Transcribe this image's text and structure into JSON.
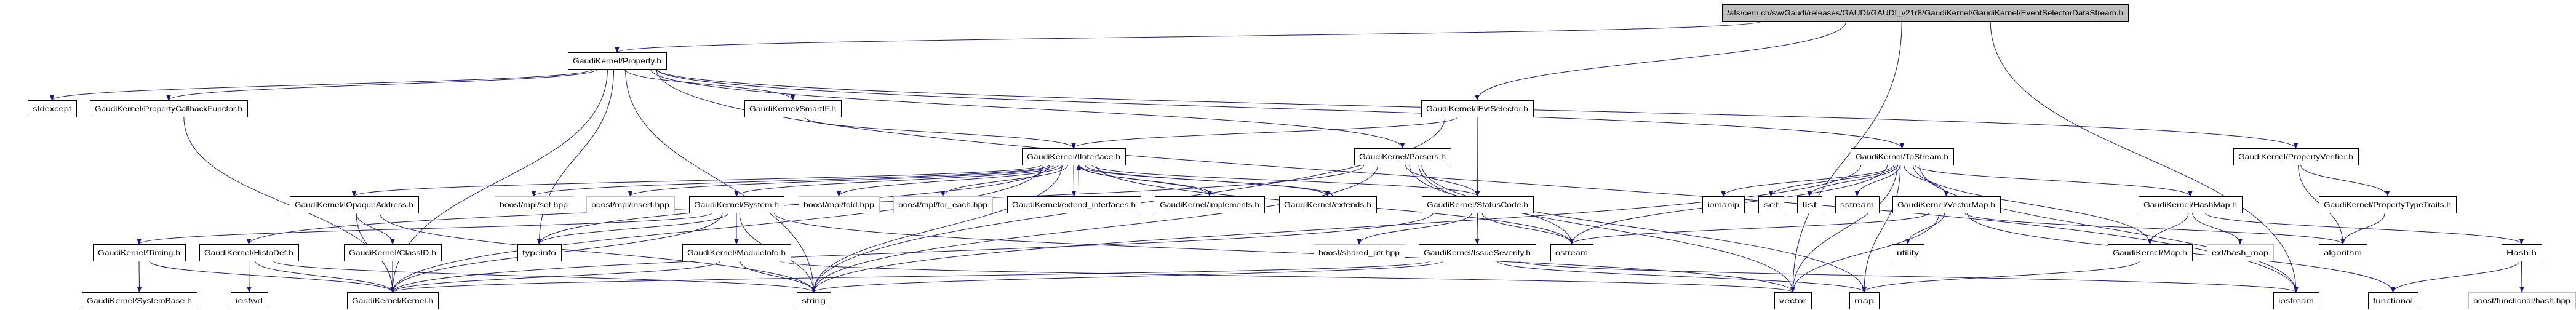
{
  "graph": {
    "edge_color": "#191970",
    "external_border_color": "#bfbfbf",
    "root_fill_color": "#bfbfbf",
    "nodes": [
      {
        "id": "root",
        "label": "/afs/cern.ch/sw/Gaudi/releases/GAUDI/GAUDI_v21r8/GaudiKernel/GaudiKernel/EventSelectorDataStream.h",
        "root": true
      },
      {
        "id": "property",
        "label": "GaudiKernel/Property.h"
      },
      {
        "id": "stdexcept",
        "label": "stdexcept"
      },
      {
        "id": "propcb",
        "label": "GaudiKernel/PropertyCallbackFunctor.h"
      },
      {
        "id": "smartif",
        "label": "GaudiKernel/SmartIF.h"
      },
      {
        "id": "ievtsel",
        "label": "GaudiKernel/IEvtSelector.h"
      },
      {
        "id": "iinterface",
        "label": "GaudiKernel/IInterface.h"
      },
      {
        "id": "parsers",
        "label": "GaudiKernel/Parsers.h"
      },
      {
        "id": "tostream",
        "label": "GaudiKernel/ToStream.h"
      },
      {
        "id": "propverifier",
        "label": "GaudiKernel/PropertyVerifier.h"
      },
      {
        "id": "iopaque",
        "label": "GaudiKernel/IOpaqueAddress.h"
      },
      {
        "id": "mplset",
        "label": "boost/mpl/set.hpp",
        "external": true
      },
      {
        "id": "mplinsert",
        "label": "boost/mpl/insert.hpp",
        "external": true
      },
      {
        "id": "system",
        "label": "GaudiKernel/System.h"
      },
      {
        "id": "mplfold",
        "label": "boost/mpl/fold.hpp",
        "external": true
      },
      {
        "id": "mplforeach",
        "label": "boost/mpl/for_each.hpp",
        "external": true
      },
      {
        "id": "extendif",
        "label": "GaudiKernel/extend_interfaces.h"
      },
      {
        "id": "implements",
        "label": "GaudiKernel/implements.h"
      },
      {
        "id": "extends",
        "label": "GaudiKernel/extends.h"
      },
      {
        "id": "statuscode",
        "label": "GaudiKernel/StatusCode.h"
      },
      {
        "id": "iomanip",
        "label": "iomanip"
      },
      {
        "id": "set",
        "label": "set"
      },
      {
        "id": "list",
        "label": "list"
      },
      {
        "id": "sstream",
        "label": "sstream"
      },
      {
        "id": "vectormap",
        "label": "GaudiKernel/VectorMap.h"
      },
      {
        "id": "hashmap",
        "label": "GaudiKernel/HashMap.h"
      },
      {
        "id": "proptypetraits",
        "label": "GaudiKernel/PropertyTypeTraits.h"
      },
      {
        "id": "timing",
        "label": "GaudiKernel/Timing.h"
      },
      {
        "id": "histodef",
        "label": "GaudiKernel/HistoDef.h"
      },
      {
        "id": "classid",
        "label": "GaudiKernel/ClassID.h"
      },
      {
        "id": "typeinfo",
        "label": "typeinfo"
      },
      {
        "id": "moduleinfo",
        "label": "GaudiKernel/ModuleInfo.h"
      },
      {
        "id": "sharedptr",
        "label": "boost/shared_ptr.hpp",
        "external": true
      },
      {
        "id": "issuesev",
        "label": "GaudiKernel/IssueSeverity.h"
      },
      {
        "id": "ostream",
        "label": "ostream"
      },
      {
        "id": "utility",
        "label": "utility"
      },
      {
        "id": "maph",
        "label": "GaudiKernel/Map.h"
      },
      {
        "id": "exthashmap",
        "label": "ext/hash_map",
        "external": true
      },
      {
        "id": "algorithm",
        "label": "algorithm"
      },
      {
        "id": "hashh",
        "label": "Hash.h"
      },
      {
        "id": "systembase",
        "label": "GaudiKernel/SystemBase.h"
      },
      {
        "id": "iosfwd",
        "label": "iosfwd"
      },
      {
        "id": "kernel",
        "label": "GaudiKernel/Kernel.h"
      },
      {
        "id": "string",
        "label": "string"
      },
      {
        "id": "vector",
        "label": "vector"
      },
      {
        "id": "map",
        "label": "map"
      },
      {
        "id": "iostream",
        "label": "iostream"
      },
      {
        "id": "functional",
        "label": "functional"
      },
      {
        "id": "boosthash",
        "label": "boost/functional/hash.hpp",
        "external": true
      }
    ],
    "edges": [
      [
        "root",
        "property"
      ],
      [
        "root",
        "ievtsel"
      ],
      [
        "root",
        "vector"
      ],
      [
        "root",
        "iostream"
      ],
      [
        "property",
        "stdexcept"
      ],
      [
        "property",
        "propcb"
      ],
      [
        "property",
        "kernel"
      ],
      [
        "property",
        "typeinfo"
      ],
      [
        "property",
        "string"
      ],
      [
        "property",
        "smartif"
      ],
      [
        "property",
        "parsers"
      ],
      [
        "property",
        "tostream"
      ],
      [
        "property",
        "propverifier"
      ],
      [
        "property",
        "iostream"
      ],
      [
        "propcb",
        "kernel"
      ],
      [
        "smartif",
        "iinterface"
      ],
      [
        "ievtsel",
        "iinterface"
      ],
      [
        "ievtsel",
        "statuscode"
      ],
      [
        "ievtsel",
        "string"
      ],
      [
        "iinterface",
        "iopaque"
      ],
      [
        "iinterface",
        "mplset"
      ],
      [
        "iinterface",
        "mplinsert"
      ],
      [
        "iinterface",
        "system"
      ],
      [
        "iinterface",
        "mplfold"
      ],
      [
        "iinterface",
        "mplforeach"
      ],
      [
        "iinterface",
        "extendif"
      ],
      [
        "iinterface",
        "implements"
      ],
      [
        "iinterface",
        "extends"
      ],
      [
        "iinterface",
        "statuscode"
      ],
      [
        "iinterface",
        "ostream"
      ],
      [
        "iinterface",
        "kernel"
      ],
      [
        "iinterface",
        "typeinfo"
      ],
      [
        "iinterface",
        "string"
      ],
      [
        "extendif",
        "iinterface"
      ],
      [
        "implements",
        "iinterface"
      ],
      [
        "extends",
        "iinterface"
      ],
      [
        "iopaque",
        "classid"
      ],
      [
        "iopaque",
        "kernel"
      ],
      [
        "iopaque",
        "string"
      ],
      [
        "system",
        "kernel"
      ],
      [
        "system",
        "typeinfo"
      ],
      [
        "system",
        "string"
      ],
      [
        "system",
        "moduleinfo"
      ],
      [
        "system",
        "timing"
      ],
      [
        "system",
        "vector"
      ],
      [
        "timing",
        "systembase"
      ],
      [
        "timing",
        "kernel"
      ],
      [
        "histodef",
        "iosfwd"
      ],
      [
        "histodef",
        "kernel"
      ],
      [
        "histodef",
        "string"
      ],
      [
        "classid",
        "kernel"
      ],
      [
        "moduleinfo",
        "kernel"
      ],
      [
        "moduleinfo",
        "string"
      ],
      [
        "moduleinfo",
        "vector"
      ],
      [
        "statuscode",
        "sharedptr"
      ],
      [
        "statuscode",
        "issuesev"
      ],
      [
        "statuscode",
        "ostream"
      ],
      [
        "statuscode",
        "kernel"
      ],
      [
        "issuesev",
        "kernel"
      ],
      [
        "issuesev",
        "string"
      ],
      [
        "issuesev",
        "map"
      ],
      [
        "issuesev",
        "iostream"
      ],
      [
        "parsers",
        "histodef"
      ],
      [
        "parsers",
        "statuscode"
      ],
      [
        "parsers",
        "string"
      ],
      [
        "parsers",
        "vector"
      ],
      [
        "parsers",
        "map"
      ],
      [
        "parsers",
        "ostream"
      ],
      [
        "tostream",
        "iomanip"
      ],
      [
        "tostream",
        "set"
      ],
      [
        "tostream",
        "list"
      ],
      [
        "tostream",
        "sstream"
      ],
      [
        "tostream",
        "vectormap"
      ],
      [
        "tostream",
        "hashmap"
      ],
      [
        "tostream",
        "maph"
      ],
      [
        "tostream",
        "vector"
      ],
      [
        "tostream",
        "map"
      ],
      [
        "tostream",
        "string"
      ],
      [
        "tostream",
        "iostream"
      ],
      [
        "tostream",
        "ostream"
      ],
      [
        "vectormap",
        "utility"
      ],
      [
        "vectormap",
        "vector"
      ],
      [
        "vectormap",
        "algorithm"
      ],
      [
        "vectormap",
        "functional"
      ],
      [
        "vectormap",
        "ostream"
      ],
      [
        "hashmap",
        "maph"
      ],
      [
        "hashmap",
        "exthashmap"
      ],
      [
        "hashmap",
        "hashh"
      ],
      [
        "maph",
        "map"
      ],
      [
        "hashh",
        "functional"
      ],
      [
        "hashh",
        "boosthash"
      ],
      [
        "propverifier",
        "algorithm"
      ],
      [
        "propverifier",
        "proptypetraits"
      ],
      [
        "proptypetraits",
        "algorithm"
      ]
    ]
  }
}
